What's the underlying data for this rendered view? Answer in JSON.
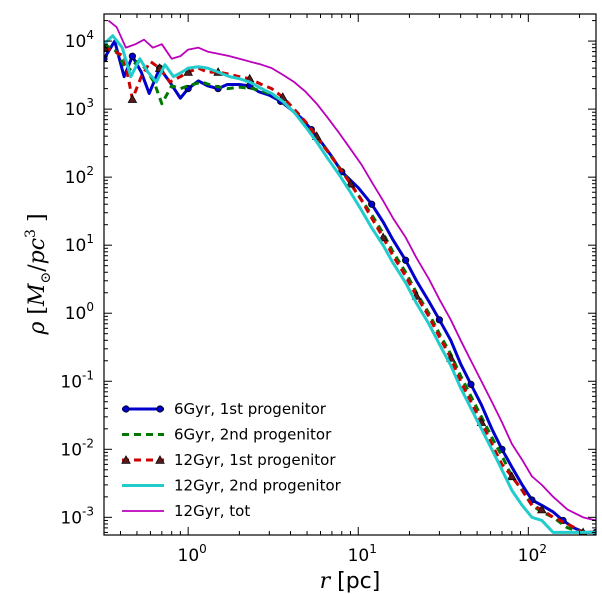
{
  "chart_data": {
    "type": "line",
    "xscale": "log",
    "yscale": "log",
    "xlim": [
      0.32,
      250
    ],
    "ylim": [
      0.00055,
      25000
    ],
    "xlabel": {
      "var": "r",
      "unit": " [pc]"
    },
    "ylabel": {
      "var": "ρ",
      "unit": "M",
      "sub": "⊙",
      "per": "pc",
      "sup": "3"
    },
    "x_ticks": [
      {
        "value": 1,
        "base": "10",
        "exp": "0"
      },
      {
        "value": 10,
        "base": "10",
        "exp": "1"
      },
      {
        "value": 100,
        "base": "10",
        "exp": "2"
      }
    ],
    "y_ticks": [
      {
        "value": 0.001,
        "base": "10",
        "exp": "-3"
      },
      {
        "value": 0.01,
        "base": "10",
        "exp": "-2"
      },
      {
        "value": 0.1,
        "base": "10",
        "exp": "-1"
      },
      {
        "value": 1,
        "base": "10",
        "exp": "0"
      },
      {
        "value": 10,
        "base": "10",
        "exp": "1"
      },
      {
        "value": 100,
        "base": "10",
        "exp": "2"
      },
      {
        "value": 1000,
        "base": "10",
        "exp": "3"
      },
      {
        "value": 10000,
        "base": "10",
        "exp": "4"
      }
    ],
    "legend_position": "lower-left",
    "grid": false,
    "series": [
      {
        "name": "6Gyr, 1st progenitor",
        "color": "#0000cc",
        "dash": "solid",
        "marker": "circle",
        "width": 3,
        "points": [
          [
            0.32,
            5500
          ],
          [
            0.37,
            10000
          ],
          [
            0.42,
            3000
          ],
          [
            0.47,
            6000
          ],
          [
            0.53,
            3500
          ],
          [
            0.59,
            1700
          ],
          [
            0.68,
            4000
          ],
          [
            0.78,
            2500
          ],
          [
            0.9,
            1450
          ],
          [
            1.0,
            2000
          ],
          [
            1.15,
            2600
          ],
          [
            1.3,
            2200
          ],
          [
            1.5,
            2000
          ],
          [
            1.7,
            2300
          ],
          [
            2.0,
            2300
          ],
          [
            2.3,
            2200
          ],
          [
            2.6,
            1800
          ],
          [
            3.0,
            1600
          ],
          [
            3.5,
            1300
          ],
          [
            4.0,
            1000
          ],
          [
            4.6,
            750
          ],
          [
            5.3,
            500
          ],
          [
            6.1,
            320
          ],
          [
            7.0,
            200
          ],
          [
            8.0,
            120
          ],
          [
            9.0,
            90
          ],
          [
            10.0,
            70
          ],
          [
            12.0,
            40
          ],
          [
            14.0,
            22
          ],
          [
            16.0,
            12
          ],
          [
            19.0,
            6
          ],
          [
            22.0,
            3
          ],
          [
            26.0,
            1.5
          ],
          [
            30.0,
            0.8
          ],
          [
            35.0,
            0.4
          ],
          [
            40.0,
            0.18
          ],
          [
            46.0,
            0.09
          ],
          [
            53.0,
            0.045
          ],
          [
            61.0,
            0.02
          ],
          [
            70.0,
            0.01
          ],
          [
            80.0,
            0.0055
          ],
          [
            92.0,
            0.003
          ],
          [
            105.0,
            0.0018
          ],
          [
            120.0,
            0.0015
          ],
          [
            140.0,
            0.0012
          ],
          [
            160.0,
            0.0009
          ],
          [
            185.0,
            0.0007
          ],
          [
            215.0,
            0.0006
          ],
          [
            250.0,
            0.0006
          ]
        ]
      },
      {
        "name": "6Gyr, 2nd progenitor",
        "color": "#007700",
        "dash": "dashed",
        "marker": "none",
        "width": 3,
        "points": [
          [
            0.32,
            9000
          ],
          [
            0.38,
            7000
          ],
          [
            0.44,
            3500
          ],
          [
            0.5,
            5000
          ],
          [
            0.56,
            4000
          ],
          [
            0.63,
            2500
          ],
          [
            0.7,
            1200
          ],
          [
            0.8,
            2200
          ],
          [
            0.9,
            2000
          ],
          [
            1.0,
            2200
          ],
          [
            1.2,
            2500
          ],
          [
            1.4,
            2200
          ],
          [
            1.7,
            2000
          ],
          [
            2.0,
            2100
          ],
          [
            2.4,
            2000
          ],
          [
            2.8,
            1800
          ],
          [
            3.3,
            1500
          ],
          [
            3.9,
            1100
          ],
          [
            4.6,
            700
          ],
          [
            5.4,
            450
          ],
          [
            6.3,
            280
          ],
          [
            7.3,
            170
          ],
          [
            8.5,
            100
          ],
          [
            10.0,
            55
          ],
          [
            12.0,
            28
          ],
          [
            14.0,
            15
          ],
          [
            16.0,
            8
          ],
          [
            19.0,
            4
          ],
          [
            22.0,
            2
          ],
          [
            26.0,
            1
          ],
          [
            30.0,
            0.5
          ],
          [
            35.0,
            0.25
          ],
          [
            40.0,
            0.12
          ],
          [
            46.0,
            0.06
          ],
          [
            53.0,
            0.03
          ],
          [
            61.0,
            0.015
          ],
          [
            70.0,
            0.008
          ],
          [
            80.0,
            0.004
          ],
          [
            92.0,
            0.0025
          ],
          [
            105.0,
            0.0015
          ],
          [
            120.0,
            0.0012
          ],
          [
            140.0,
            0.001
          ],
          [
            170.0,
            0.0007
          ],
          [
            210.0,
            0.0006
          ],
          [
            250.0,
            0.0006
          ]
        ]
      },
      {
        "name": "12Gyr, 1st progenitor",
        "color": "#cc0000",
        "dash": "dashed",
        "marker": "triangle",
        "width": 3,
        "points": [
          [
            0.32,
            8000
          ],
          [
            0.37,
            7000
          ],
          [
            0.42,
            6000
          ],
          [
            0.47,
            1400
          ],
          [
            0.53,
            3000
          ],
          [
            0.6,
            5000
          ],
          [
            0.68,
            4000
          ],
          [
            0.78,
            2500
          ],
          [
            0.9,
            3000
          ],
          [
            1.0,
            3500
          ],
          [
            1.15,
            4000
          ],
          [
            1.3,
            3500
          ],
          [
            1.5,
            3500
          ],
          [
            1.7,
            3300
          ],
          [
            2.0,
            3000
          ],
          [
            2.3,
            2800
          ],
          [
            2.7,
            2300
          ],
          [
            3.1,
            2000
          ],
          [
            3.6,
            1500
          ],
          [
            4.2,
            1000
          ],
          [
            4.9,
            650
          ],
          [
            5.7,
            400
          ],
          [
            6.6,
            240
          ],
          [
            7.7,
            140
          ],
          [
            9.0,
            80
          ],
          [
            10.5,
            45
          ],
          [
            12.0,
            25
          ],
          [
            14.0,
            13
          ],
          [
            16.0,
            7
          ],
          [
            19.0,
            3.5
          ],
          [
            22.0,
            1.8
          ],
          [
            26.0,
            0.9
          ],
          [
            30.0,
            0.45
          ],
          [
            35.0,
            0.22
          ],
          [
            40.0,
            0.1
          ],
          [
            46.0,
            0.05
          ],
          [
            53.0,
            0.025
          ],
          [
            61.0,
            0.012
          ],
          [
            70.0,
            0.006
          ],
          [
            80.0,
            0.004
          ],
          [
            92.0,
            0.0025
          ],
          [
            105.0,
            0.0015
          ],
          [
            120.0,
            0.0013
          ],
          [
            140.0,
            0.001
          ],
          [
            170.0,
            0.0008
          ],
          [
            210.0,
            0.0006
          ],
          [
            250.0,
            0.0006
          ]
        ]
      },
      {
        "name": "12Gyr, 2nd progenitor",
        "color": "#22cccc",
        "dash": "solid",
        "marker": "none",
        "width": 3,
        "points": [
          [
            0.32,
            9000
          ],
          [
            0.36,
            12000
          ],
          [
            0.41,
            8000
          ],
          [
            0.46,
            3000
          ],
          [
            0.52,
            5500
          ],
          [
            0.58,
            3500
          ],
          [
            0.65,
            2500
          ],
          [
            0.73,
            4500
          ],
          [
            0.82,
            3000
          ],
          [
            0.92,
            3500
          ],
          [
            1.0,
            4000
          ],
          [
            1.15,
            4200
          ],
          [
            1.3,
            4000
          ],
          [
            1.5,
            3500
          ],
          [
            1.75,
            3000
          ],
          [
            2.0,
            2800
          ],
          [
            2.3,
            2500
          ],
          [
            2.7,
            2000
          ],
          [
            3.1,
            1700
          ],
          [
            3.6,
            1300
          ],
          [
            4.2,
            900
          ],
          [
            4.9,
            550
          ],
          [
            5.7,
            330
          ],
          [
            6.6,
            190
          ],
          [
            7.7,
            110
          ],
          [
            9.0,
            60
          ],
          [
            10.5,
            32
          ],
          [
            12.0,
            18
          ],
          [
            14.0,
            10
          ],
          [
            16.0,
            5.5
          ],
          [
            19.0,
            2.8
          ],
          [
            22.0,
            1.4
          ],
          [
            26.0,
            0.7
          ],
          [
            30.0,
            0.35
          ],
          [
            35.0,
            0.17
          ],
          [
            40.0,
            0.08
          ],
          [
            46.0,
            0.04
          ],
          [
            53.0,
            0.02
          ],
          [
            61.0,
            0.01
          ],
          [
            70.0,
            0.005
          ],
          [
            80.0,
            0.0025
          ],
          [
            92.0,
            0.0015
          ],
          [
            105.0,
            0.001
          ],
          [
            120.0,
            0.0009
          ],
          [
            140.0,
            0.0006
          ],
          [
            170.0,
            0.0006
          ],
          [
            210.0,
            0.0006
          ],
          [
            250.0,
            0.0006
          ]
        ]
      },
      {
        "name": "12Gyr, tot",
        "color": "#bb00bb",
        "dash": "solid",
        "marker": "none",
        "width": 1.8,
        "points": [
          [
            0.34,
            20000
          ],
          [
            0.38,
            16000
          ],
          [
            0.43,
            8000
          ],
          [
            0.49,
            9000
          ],
          [
            0.55,
            10500
          ],
          [
            0.62,
            8000
          ],
          [
            0.7,
            9000
          ],
          [
            0.8,
            5500
          ],
          [
            0.9,
            6000
          ],
          [
            1.0,
            7500
          ],
          [
            1.15,
            8000
          ],
          [
            1.3,
            7000
          ],
          [
            1.5,
            6500
          ],
          [
            1.75,
            6000
          ],
          [
            2.0,
            5500
          ],
          [
            2.3,
            5000
          ],
          [
            2.7,
            4500
          ],
          [
            3.1,
            4000
          ],
          [
            3.6,
            3200
          ],
          [
            4.2,
            2500
          ],
          [
            4.9,
            1800
          ],
          [
            5.7,
            1200
          ],
          [
            6.6,
            750
          ],
          [
            7.7,
            450
          ],
          [
            9.0,
            260
          ],
          [
            10.5,
            150
          ],
          [
            12.0,
            85
          ],
          [
            14.0,
            45
          ],
          [
            16.0,
            25
          ],
          [
            19.0,
            13
          ],
          [
            22.0,
            6.5
          ],
          [
            26.0,
            3.2
          ],
          [
            30.0,
            1.6
          ],
          [
            35.0,
            0.8
          ],
          [
            40.0,
            0.4
          ],
          [
            46.0,
            0.2
          ],
          [
            53.0,
            0.1
          ],
          [
            61.0,
            0.05
          ],
          [
            70.0,
            0.025
          ],
          [
            80.0,
            0.012
          ],
          [
            92.0,
            0.007
          ],
          [
            105.0,
            0.004
          ],
          [
            120.0,
            0.003
          ],
          [
            140.0,
            0.002
          ],
          [
            170.0,
            0.0013
          ],
          [
            210.0,
            0.001
          ],
          [
            250.0,
            0.0009
          ]
        ]
      }
    ]
  }
}
